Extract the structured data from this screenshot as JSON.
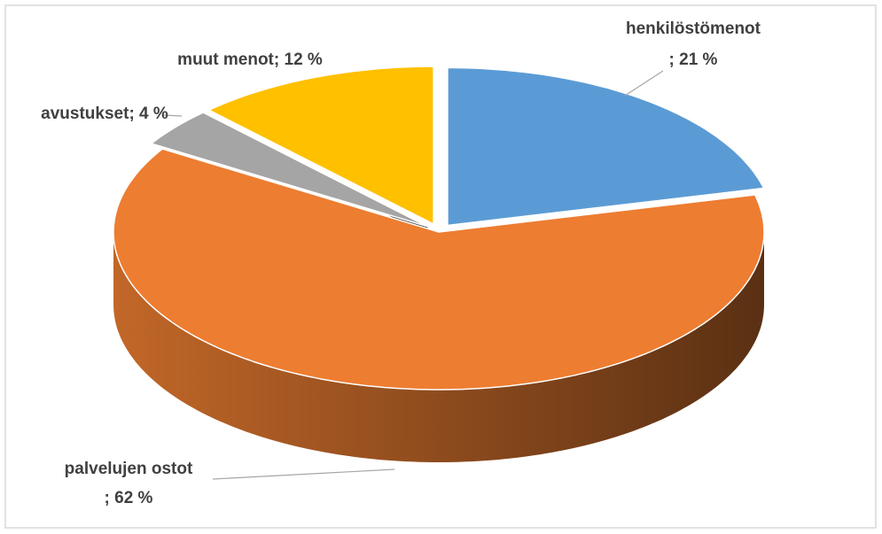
{
  "chart_data": {
    "type": "pie3d",
    "categories": [
      "henkilöstömenot",
      "palvelujen ostot",
      "avustukset",
      "muut menot"
    ],
    "values": [
      21,
      62,
      4,
      12
    ],
    "value_labels": [
      "; 21 %",
      "; 62 %",
      "; 4 %",
      "; 12 %"
    ],
    "colors": [
      "#5b9bd5",
      "#ed7d31",
      "#a5a5a5",
      "#ffc000"
    ]
  }
}
